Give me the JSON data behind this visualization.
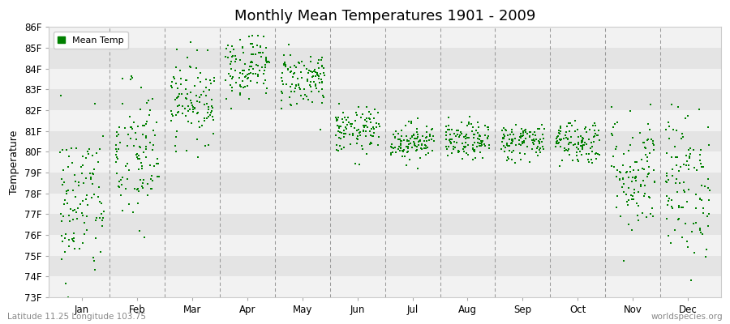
{
  "title": "Monthly Mean Temperatures 1901 - 2009",
  "ylabel": "Temperature",
  "subtitle_left": "Latitude 11.25 Longitude 103.75",
  "subtitle_right": "worldspecies.org",
  "months": [
    "Jan",
    "Feb",
    "Mar",
    "Apr",
    "May",
    "Jun",
    "Jul",
    "Aug",
    "Sep",
    "Oct",
    "Nov",
    "Dec"
  ],
  "month_means": [
    77.5,
    79.7,
    82.5,
    84.2,
    83.5,
    81.0,
    80.5,
    80.5,
    80.5,
    80.5,
    79.0,
    78.5
  ],
  "month_stds": [
    1.9,
    1.8,
    1.0,
    0.8,
    0.7,
    0.55,
    0.45,
    0.45,
    0.45,
    0.55,
    1.5,
    1.8
  ],
  "ylim_min": 73,
  "ylim_max": 86,
  "yticks": [
    73,
    74,
    75,
    76,
    77,
    78,
    79,
    80,
    81,
    82,
    83,
    84,
    85,
    86
  ],
  "ytick_labels": [
    "73F",
    "74F",
    "75F",
    "76F",
    "77F",
    "78F",
    "79F",
    "80F",
    "81F",
    "82F",
    "83F",
    "84F",
    "85F",
    "86F"
  ],
  "n_years": 109,
  "marker_color": "#008000",
  "marker_size": 4,
  "bg_color": "#ebebeb",
  "band_light": "#f2f2f2",
  "band_dark": "#e4e4e4",
  "legend_label": "Mean Temp",
  "vline_color": "#999999",
  "title_fontsize": 13,
  "tick_fontsize": 8.5,
  "ylabel_fontsize": 9,
  "subtitle_fontsize": 7.5
}
